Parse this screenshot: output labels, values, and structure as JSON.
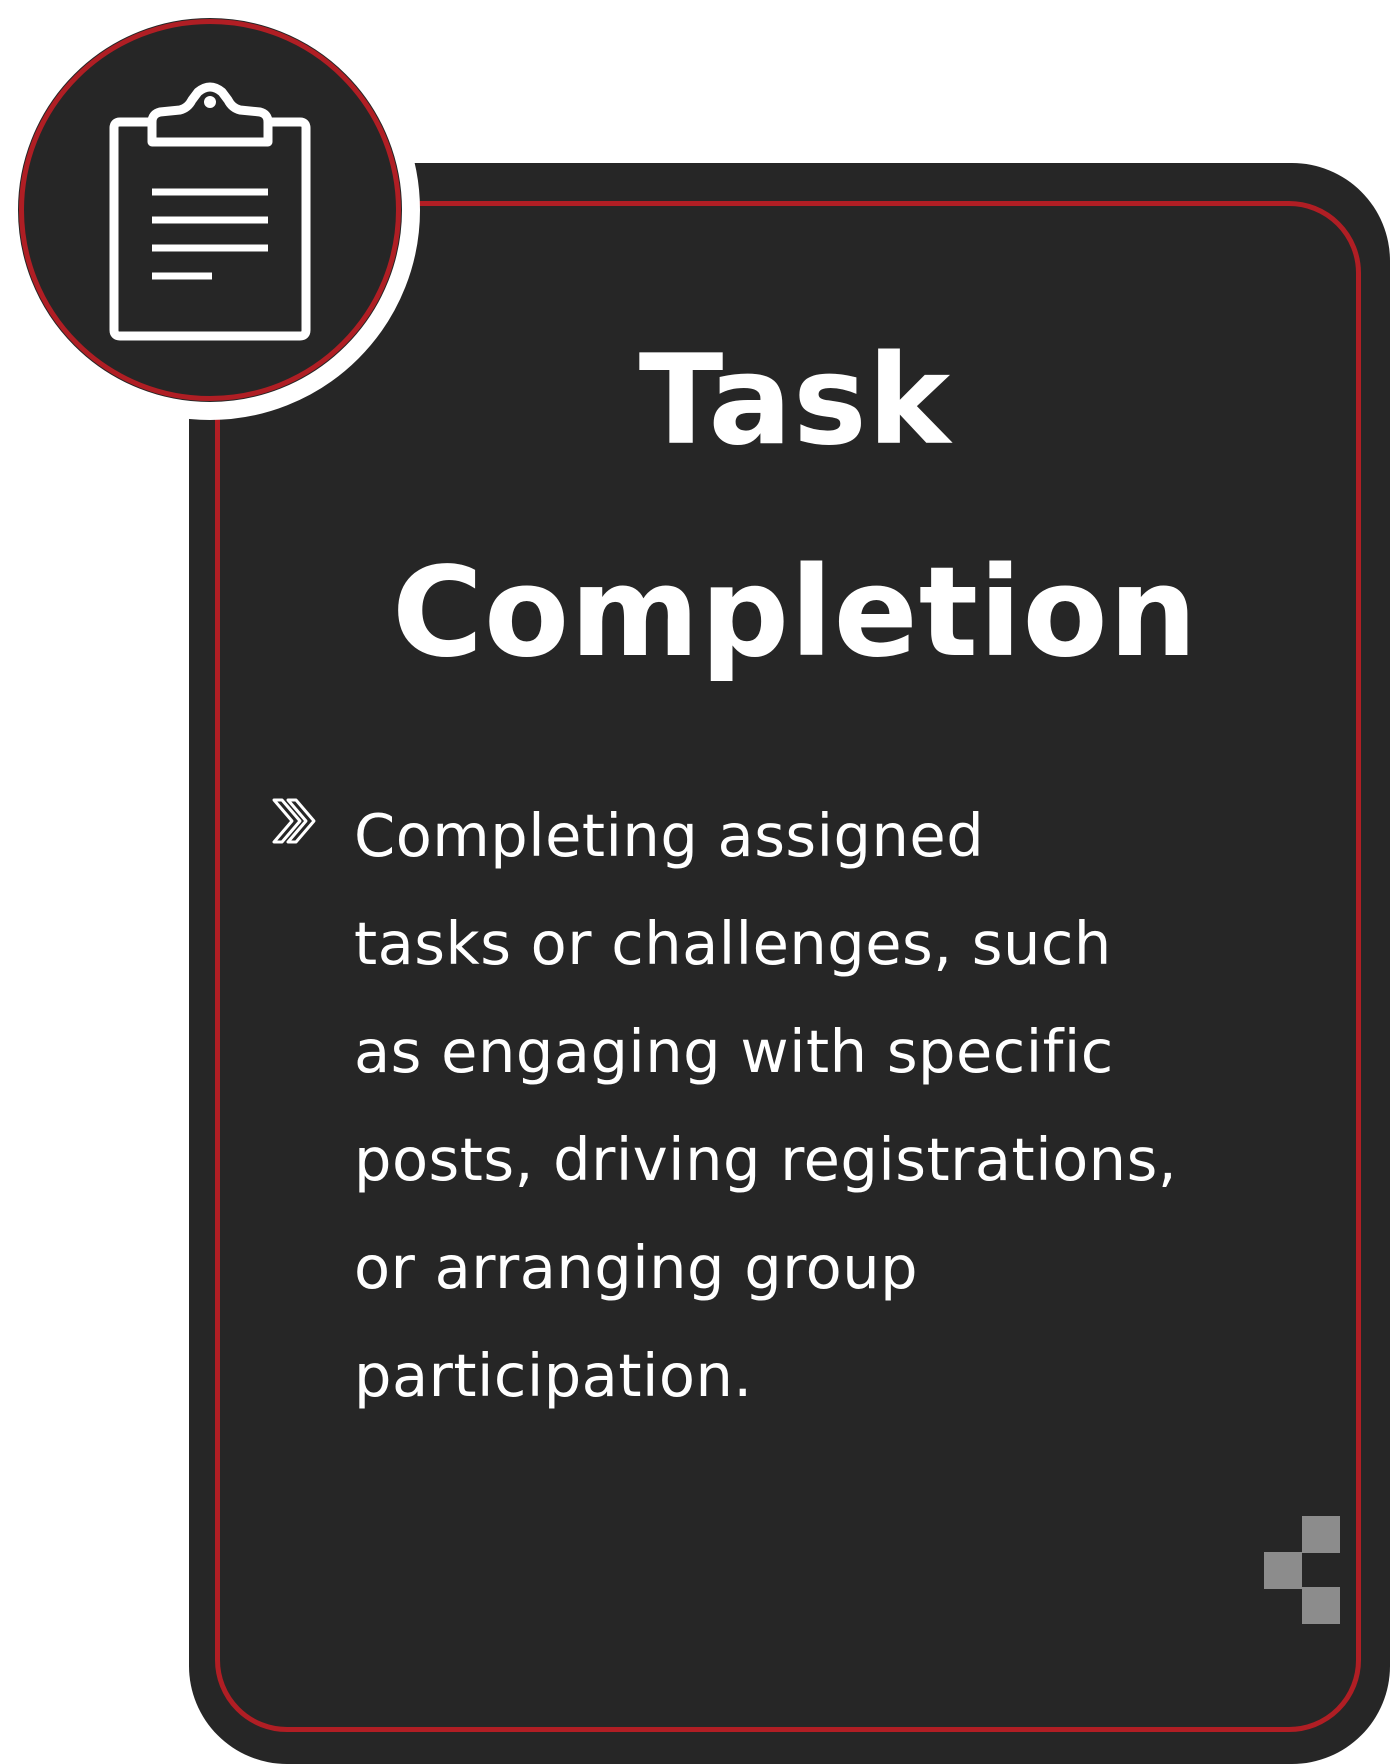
{
  "card": {
    "title_line1": "Task",
    "title_line2": "Completion",
    "description_lines": [
      "Completing assigned",
      "tasks or challenges, such",
      "as engaging with specific",
      "posts, driving registrations,",
      "or arranging group",
      "participation."
    ]
  },
  "icons": {
    "badge_icon": "clipboard-icon",
    "bullet_icon": "double-chevron-right-icon",
    "corner_decoration": "pixel-squares-icon"
  },
  "colors": {
    "card_background": "#262626",
    "accent_red": "#b01e24",
    "text": "#ffffff",
    "pixel_grey": "#8c8c8c"
  }
}
